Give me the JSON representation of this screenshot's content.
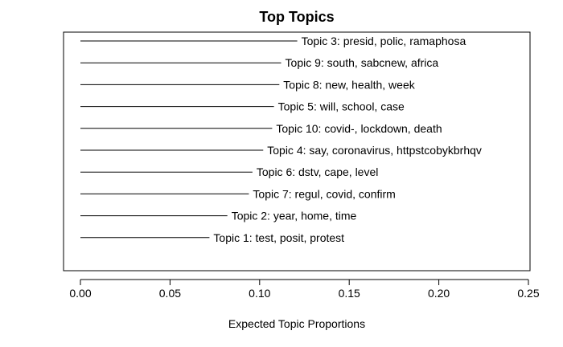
{
  "chart_data": {
    "type": "bar",
    "orientation": "horizontal",
    "title": "Top Topics",
    "xlabel": "Expected Topic Proportions",
    "ylabel": "",
    "xlim": [
      0,
      0.25
    ],
    "xticks": [
      "0.00",
      "0.05",
      "0.10",
      "0.15",
      "0.20",
      "0.25"
    ],
    "xtick_values": [
      0,
      0.05,
      0.1,
      0.15,
      0.2,
      0.25
    ],
    "grid": false,
    "legend": "none",
    "categories": [
      "Topic 3: presid, polic, ramaphosa",
      "Topic 9: south, sabcnew, africa",
      "Topic 8: new, health, week",
      "Topic 5: will, school, case",
      "Topic 10: covid-, lockdown, death",
      "Topic 4: say, coronavirus, httpstcobykbrhqv",
      "Topic 6: dstv, cape, level",
      "Topic 7: regul, covid, confirm",
      "Topic 2: year, home, time",
      "Topic 1: test, posit, protest"
    ],
    "values": [
      0.121,
      0.112,
      0.111,
      0.108,
      0.107,
      0.102,
      0.096,
      0.094,
      0.082,
      0.072
    ],
    "color": "#000000"
  }
}
